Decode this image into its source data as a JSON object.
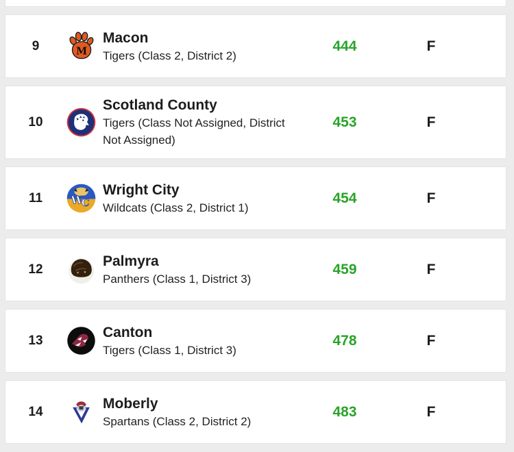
{
  "page": {
    "background_color": "#ececec",
    "card_color": "#ffffff",
    "score_color": "#29a329",
    "text_color": "#1c1c1e"
  },
  "standings": {
    "rows": [
      {
        "rank": "9",
        "team": "Macon",
        "detail": "Tigers (Class 2, District 2)",
        "score": "444",
        "status": "F",
        "logo": "macon-tigers-paw-logo"
      },
      {
        "rank": "10",
        "team": "Scotland County",
        "detail": "Tigers (Class Not Assigned, District Not Assigned)",
        "score": "453",
        "status": "F",
        "logo": "scotland-county-tigers-logo"
      },
      {
        "rank": "11",
        "team": "Wright City",
        "detail": "Wildcats (Class 2, District 1)",
        "score": "454",
        "status": "F",
        "logo": "wright-city-wildcats-logo"
      },
      {
        "rank": "12",
        "team": "Palmyra",
        "detail": "Panthers (Class 1, District 3)",
        "score": "459",
        "status": "F",
        "logo": "palmyra-panthers-logo"
      },
      {
        "rank": "13",
        "team": "Canton",
        "detail": "Tigers (Class 1, District 3)",
        "score": "478",
        "status": "F",
        "logo": "canton-tigers-logo"
      },
      {
        "rank": "14",
        "team": "Moberly",
        "detail": "Spartans (Class 2, District 2)",
        "score": "483",
        "status": "F",
        "logo": "moberly-spartans-logo"
      }
    ]
  }
}
